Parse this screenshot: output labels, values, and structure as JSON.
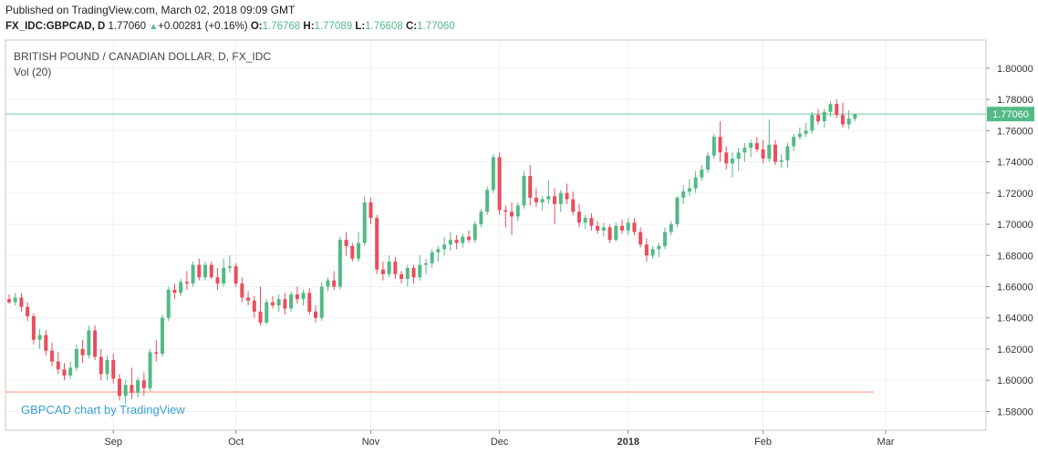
{
  "header": {
    "published": "Published on TradingView.com, March 02, 2018 09:09 GMT",
    "symbol": "FX_IDC:GBPCAD, D",
    "last": "1.77060",
    "change": "+0.00281 (+0.16%)",
    "o_label": "O:",
    "o_value": "1.76768",
    "h_label": "H:",
    "h_value": "1.77089",
    "l_label": "L:",
    "l_value": "1.76608",
    "c_label": "C:",
    "c_value": "1.77060"
  },
  "overlay": {
    "title": "BRITISH POUND / CANADIAN DOLLAR, D, FX_IDC",
    "volume": "Vol (20)"
  },
  "watermark": "GBPCAD chart by TradingView",
  "colors": {
    "up": "#53b987",
    "down": "#eb4d5c",
    "price_line": "#6fc9a5",
    "level_line": "#f7a185",
    "grid": "#eef0f3",
    "axis_text": "#333333"
  },
  "chart_data": {
    "type": "candlestick",
    "title": "BRITISH POUND / CANADIAN DOLLAR, D, FX_IDC",
    "ylim": [
      1.568,
      1.818
    ],
    "y_ticks": [
      "1.80000",
      "1.78000",
      "1.76000",
      "1.74000",
      "1.72000",
      "1.70000",
      "1.68000",
      "1.66000",
      "1.64000",
      "1.62000",
      "1.60000",
      "1.58000"
    ],
    "x_ticks": [
      {
        "label": "Sep",
        "index": 17,
        "bold": false
      },
      {
        "label": "Oct",
        "index": 37,
        "bold": false
      },
      {
        "label": "Nov",
        "index": 59,
        "bold": false
      },
      {
        "label": "Dec",
        "index": 80,
        "bold": false
      },
      {
        "label": "2018",
        "index": 101,
        "bold": true
      },
      {
        "label": "Feb",
        "index": 123,
        "bold": false
      },
      {
        "label": "Mar",
        "index": 143,
        "bold": false
      }
    ],
    "last_price": 1.7706,
    "last_price_label": "1.77060",
    "horizontal_level": 1.5925,
    "candles": [
      [
        1.652,
        1.655,
        1.649,
        1.65
      ],
      [
        1.65,
        1.656,
        1.648,
        1.653
      ],
      [
        1.653,
        1.656,
        1.644,
        1.647
      ],
      [
        1.647,
        1.65,
        1.638,
        1.641
      ],
      [
        1.641,
        1.643,
        1.623,
        1.626
      ],
      [
        1.626,
        1.633,
        1.62,
        1.629
      ],
      [
        1.629,
        1.632,
        1.616,
        1.619
      ],
      [
        1.619,
        1.624,
        1.609,
        1.612
      ],
      [
        1.612,
        1.618,
        1.604,
        1.607
      ],
      [
        1.607,
        1.611,
        1.6,
        1.603
      ],
      [
        1.603,
        1.612,
        1.601,
        1.608
      ],
      [
        1.608,
        1.623,
        1.606,
        1.62
      ],
      [
        1.62,
        1.626,
        1.611,
        1.616
      ],
      [
        1.616,
        1.635,
        1.614,
        1.632
      ],
      [
        1.632,
        1.635,
        1.613,
        1.615
      ],
      [
        1.615,
        1.62,
        1.6,
        1.604
      ],
      [
        1.604,
        1.616,
        1.6,
        1.613
      ],
      [
        1.613,
        1.617,
        1.598,
        1.601
      ],
      [
        1.601,
        1.604,
        1.587,
        1.59
      ],
      [
        1.59,
        1.6,
        1.585,
        1.597
      ],
      [
        1.597,
        1.608,
        1.588,
        1.592
      ],
      [
        1.592,
        1.602,
        1.589,
        1.6
      ],
      [
        1.6,
        1.605,
        1.59,
        1.595
      ],
      [
        1.595,
        1.62,
        1.593,
        1.618
      ],
      [
        1.618,
        1.626,
        1.612,
        1.617
      ],
      [
        1.617,
        1.642,
        1.615,
        1.64
      ],
      [
        1.64,
        1.66,
        1.638,
        1.658
      ],
      [
        1.658,
        1.662,
        1.652,
        1.656
      ],
      [
        1.656,
        1.665,
        1.654,
        1.663
      ],
      [
        1.663,
        1.67,
        1.658,
        1.662
      ],
      [
        1.662,
        1.676,
        1.66,
        1.674
      ],
      [
        1.674,
        1.678,
        1.664,
        1.666
      ],
      [
        1.666,
        1.676,
        1.664,
        1.674
      ],
      [
        1.674,
        1.676,
        1.665,
        1.666
      ],
      [
        1.666,
        1.672,
        1.658,
        1.662
      ],
      [
        1.662,
        1.678,
        1.66,
        1.672
      ],
      [
        1.672,
        1.68,
        1.669,
        1.673
      ],
      [
        1.673,
        1.675,
        1.66,
        1.662
      ],
      [
        1.662,
        1.666,
        1.65,
        1.653
      ],
      [
        1.653,
        1.657,
        1.648,
        1.651
      ],
      [
        1.651,
        1.654,
        1.64,
        1.644
      ],
      [
        1.644,
        1.66,
        1.635,
        1.637
      ],
      [
        1.637,
        1.652,
        1.636,
        1.65
      ],
      [
        1.65,
        1.654,
        1.646,
        1.648
      ],
      [
        1.648,
        1.655,
        1.644,
        1.652
      ],
      [
        1.652,
        1.656,
        1.642,
        1.646
      ],
      [
        1.646,
        1.657,
        1.644,
        1.655
      ],
      [
        1.655,
        1.66,
        1.649,
        1.652
      ],
      [
        1.652,
        1.658,
        1.648,
        1.656
      ],
      [
        1.656,
        1.659,
        1.642,
        1.644
      ],
      [
        1.644,
        1.648,
        1.637,
        1.64
      ],
      [
        1.64,
        1.663,
        1.638,
        1.66
      ],
      [
        1.66,
        1.666,
        1.657,
        1.664
      ],
      [
        1.664,
        1.67,
        1.658,
        1.66
      ],
      [
        1.66,
        1.692,
        1.658,
        1.69
      ],
      [
        1.69,
        1.695,
        1.68,
        1.686
      ],
      [
        1.686,
        1.688,
        1.676,
        1.678
      ],
      [
        1.678,
        1.695,
        1.676,
        1.688
      ],
      [
        1.688,
        1.718,
        1.686,
        1.714
      ],
      [
        1.714,
        1.717,
        1.7,
        1.704
      ],
      [
        1.704,
        1.706,
        1.668,
        1.671
      ],
      [
        1.671,
        1.676,
        1.664,
        1.668
      ],
      [
        1.668,
        1.68,
        1.666,
        1.676
      ],
      [
        1.676,
        1.679,
        1.665,
        1.668
      ],
      [
        1.668,
        1.67,
        1.662,
        1.665
      ],
      [
        1.665,
        1.674,
        1.66,
        1.672
      ],
      [
        1.672,
        1.674,
        1.662,
        1.666
      ],
      [
        1.666,
        1.68,
        1.664,
        1.674
      ],
      [
        1.674,
        1.678,
        1.668,
        1.675
      ],
      [
        1.675,
        1.684,
        1.672,
        1.682
      ],
      [
        1.682,
        1.686,
        1.676,
        1.684
      ],
      [
        1.684,
        1.692,
        1.68,
        1.687
      ],
      [
        1.687,
        1.695,
        1.683,
        1.69
      ],
      [
        1.69,
        1.693,
        1.684,
        1.688
      ],
      [
        1.688,
        1.694,
        1.685,
        1.692
      ],
      [
        1.692,
        1.696,
        1.688,
        1.69
      ],
      [
        1.69,
        1.702,
        1.688,
        1.7
      ],
      [
        1.7,
        1.71,
        1.698,
        1.708
      ],
      [
        1.708,
        1.724,
        1.706,
        1.722
      ],
      [
        1.722,
        1.745,
        1.72,
        1.743
      ],
      [
        1.743,
        1.746,
        1.706,
        1.709
      ],
      [
        1.709,
        1.712,
        1.698,
        1.708
      ],
      [
        1.708,
        1.714,
        1.693,
        1.705
      ],
      [
        1.705,
        1.714,
        1.702,
        1.712
      ],
      [
        1.712,
        1.734,
        1.71,
        1.731
      ],
      [
        1.731,
        1.738,
        1.712,
        1.717
      ],
      [
        1.717,
        1.723,
        1.711,
        1.714
      ],
      [
        1.714,
        1.718,
        1.709,
        1.716
      ],
      [
        1.716,
        1.728,
        1.713,
        1.718
      ],
      [
        1.718,
        1.723,
        1.7,
        1.713
      ],
      [
        1.713,
        1.722,
        1.708,
        1.72
      ],
      [
        1.72,
        1.726,
        1.713,
        1.716
      ],
      [
        1.716,
        1.721,
        1.706,
        1.708
      ],
      [
        1.708,
        1.713,
        1.698,
        1.701
      ],
      [
        1.701,
        1.706,
        1.697,
        1.704
      ],
      [
        1.704,
        1.707,
        1.696,
        1.699
      ],
      [
        1.699,
        1.702,
        1.694,
        1.696
      ],
      [
        1.696,
        1.701,
        1.692,
        1.698
      ],
      [
        1.698,
        1.7,
        1.688,
        1.69
      ],
      [
        1.69,
        1.701,
        1.689,
        1.699
      ],
      [
        1.699,
        1.703,
        1.694,
        1.696
      ],
      [
        1.696,
        1.704,
        1.693,
        1.701
      ],
      [
        1.701,
        1.704,
        1.693,
        1.695
      ],
      [
        1.695,
        1.698,
        1.685,
        1.687
      ],
      [
        1.687,
        1.691,
        1.676,
        1.68
      ],
      [
        1.68,
        1.686,
        1.678,
        1.684
      ],
      [
        1.684,
        1.688,
        1.679,
        1.686
      ],
      [
        1.686,
        1.698,
        1.684,
        1.695
      ],
      [
        1.695,
        1.702,
        1.693,
        1.7
      ],
      [
        1.7,
        1.718,
        1.698,
        1.717
      ],
      [
        1.717,
        1.725,
        1.713,
        1.721
      ],
      [
        1.721,
        1.729,
        1.718,
        1.723
      ],
      [
        1.723,
        1.734,
        1.72,
        1.73
      ],
      [
        1.73,
        1.738,
        1.728,
        1.735
      ],
      [
        1.735,
        1.746,
        1.733,
        1.744
      ],
      [
        1.744,
        1.758,
        1.742,
        1.756
      ],
      [
        1.756,
        1.766,
        1.74,
        1.746
      ],
      [
        1.746,
        1.75,
        1.735,
        1.739
      ],
      [
        1.739,
        1.746,
        1.73,
        1.742
      ],
      [
        1.742,
        1.749,
        1.734,
        1.746
      ],
      [
        1.746,
        1.752,
        1.74,
        1.749
      ],
      [
        1.749,
        1.754,
        1.743,
        1.752
      ],
      [
        1.752,
        1.756,
        1.746,
        1.748
      ],
      [
        1.748,
        1.754,
        1.739,
        1.742
      ],
      [
        1.742,
        1.767,
        1.74,
        1.751
      ],
      [
        1.751,
        1.754,
        1.738,
        1.74
      ],
      [
        1.74,
        1.745,
        1.736,
        1.741
      ],
      [
        1.741,
        1.752,
        1.736,
        1.75
      ],
      [
        1.75,
        1.758,
        1.747,
        1.756
      ],
      [
        1.756,
        1.762,
        1.754,
        1.758
      ],
      [
        1.758,
        1.765,
        1.756,
        1.76
      ],
      [
        1.76,
        1.772,
        1.758,
        1.77
      ],
      [
        1.77,
        1.774,
        1.764,
        1.766
      ],
      [
        1.766,
        1.774,
        1.762,
        1.772
      ],
      [
        1.772,
        1.779,
        1.769,
        1.777
      ],
      [
        1.777,
        1.78,
        1.768,
        1.77
      ],
      [
        1.77,
        1.778,
        1.762,
        1.764
      ],
      [
        1.764,
        1.773,
        1.761,
        1.7677
      ],
      [
        1.76768,
        1.77089,
        1.76608,
        1.7706
      ]
    ]
  }
}
